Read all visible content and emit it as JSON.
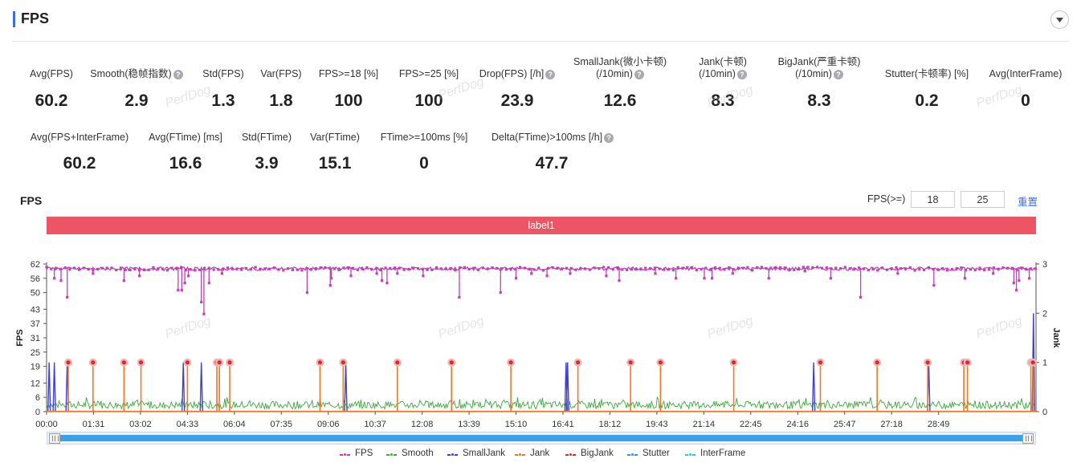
{
  "header": {
    "title": "FPS"
  },
  "metrics_row1": [
    {
      "label": "Avg(FPS)",
      "value": "60.2",
      "help": false
    },
    {
      "label": "Smooth(稳帧指数)",
      "value": "2.9",
      "help": true
    },
    {
      "label": "Std(FPS)",
      "value": "1.3",
      "help": false
    },
    {
      "label": "Var(FPS)",
      "value": "1.8",
      "help": false
    },
    {
      "label": "FPS>=18 [%]",
      "value": "100",
      "help": false
    },
    {
      "label": "FPS>=25 [%]",
      "value": "100",
      "help": false
    },
    {
      "label": "Drop(FPS) [/h]",
      "value": "23.9",
      "help": true
    },
    {
      "label": "SmallJank(微小卡顿)",
      "label2": "(/10min)",
      "value": "12.6",
      "help": true
    },
    {
      "label": "Jank(卡顿)",
      "label2": "(/10min)",
      "value": "8.3",
      "help": true
    },
    {
      "label": "BigJank(严重卡顿)",
      "label2": "(/10min)",
      "value": "8.3",
      "help": true
    },
    {
      "label": "Stutter(卡顿率) [%]",
      "value": "0.2",
      "help": false
    },
    {
      "label": "Avg(InterFrame)",
      "value": "0",
      "help": false
    }
  ],
  "metrics_row2": [
    {
      "label": "Avg(FPS+InterFrame)",
      "value": "60.2",
      "help": false
    },
    {
      "label": "Avg(FTime) [ms]",
      "value": "16.6",
      "help": false
    },
    {
      "label": "Std(FTime)",
      "value": "3.9",
      "help": false
    },
    {
      "label": "Var(FTime)",
      "value": "15.1",
      "help": false
    },
    {
      "label": "FTime>=100ms [%]",
      "value": "0",
      "help": false
    },
    {
      "label": "Delta(FTime)>100ms [/h]",
      "value": "47.7",
      "help": true
    }
  ],
  "chart_controls": {
    "title": "FPS",
    "threshold_label": "FPS(>=)",
    "threshold1": "18",
    "threshold2": "25",
    "reset_label": "重置",
    "label_bar": "label1",
    "watermark": "PerfDog"
  },
  "colors": {
    "accent": "#3b6fd6",
    "fps": "#c040b8",
    "smooth": "#3aa83a",
    "smalljank": "#4040d8",
    "jank": "#f07828",
    "bigjank": "#e02828",
    "stutter": "#3a90ea",
    "interframe": "#30c8d8",
    "label_bar": "#ee5564"
  },
  "chart_data": {
    "type": "line",
    "xlabel": "",
    "ylabel": "FPS",
    "y2label": "Jank",
    "x_unit": "mm:ss",
    "x_range": [
      0,
      1918
    ],
    "ylim": [
      0,
      62
    ],
    "y_ticks": [
      0,
      6,
      12,
      19,
      25,
      31,
      37,
      43,
      50,
      56,
      62
    ],
    "y2lim": [
      0,
      3
    ],
    "y2_ticks": [
      0,
      1,
      2,
      3
    ],
    "x_ticks": [
      "00:00",
      "01:31",
      "03:02",
      "04:33",
      "06:04",
      "07:35",
      "09:06",
      "10:37",
      "12:08",
      "13:39",
      "15:10",
      "16:41",
      "18:12",
      "19:43",
      "21:14",
      "22:45",
      "24:16",
      "25:47",
      "27:18",
      "28:49"
    ],
    "grid": false,
    "legend_position": "bottom",
    "series": [
      {
        "name": "FPS",
        "axis": "left",
        "baseline": 60,
        "dips": [
          [
            15,
            56
          ],
          [
            28,
            55
          ],
          [
            40,
            48
          ],
          [
            90,
            58
          ],
          [
            150,
            55
          ],
          [
            180,
            57
          ],
          [
            255,
            51
          ],
          [
            262,
            51
          ],
          [
            268,
            54
          ],
          [
            275,
            57
          ],
          [
            300,
            46
          ],
          [
            305,
            41
          ],
          [
            315,
            54
          ],
          [
            340,
            58
          ],
          [
            505,
            50
          ],
          [
            550,
            53
          ],
          [
            552,
            56
          ],
          [
            590,
            57
          ],
          [
            640,
            58
          ],
          [
            650,
            55
          ],
          [
            660,
            54
          ],
          [
            680,
            58
          ],
          [
            730,
            57
          ],
          [
            800,
            48
          ],
          [
            880,
            50
          ],
          [
            910,
            56
          ],
          [
            940,
            58
          ],
          [
            970,
            57
          ],
          [
            1015,
            58
          ],
          [
            1085,
            57
          ],
          [
            1110,
            55
          ],
          [
            1180,
            58
          ],
          [
            1220,
            56
          ],
          [
            1275,
            56
          ],
          [
            1290,
            56
          ],
          [
            1330,
            58
          ],
          [
            1400,
            56
          ],
          [
            1470,
            59
          ],
          [
            1520,
            56
          ],
          [
            1578,
            48
          ],
          [
            1650,
            58
          ],
          [
            1720,
            53
          ],
          [
            1780,
            56
          ],
          [
            1835,
            58
          ],
          [
            1875,
            54
          ],
          [
            1880,
            51
          ],
          [
            1885,
            55
          ],
          [
            1905,
            56
          ]
        ]
      },
      {
        "name": "Smooth",
        "axis": "left",
        "approx_range": [
          0,
          6
        ]
      },
      {
        "name": "SmallJank",
        "axis": "right",
        "events": [
          [
            5,
            1
          ],
          [
            15,
            1
          ],
          [
            40,
            1
          ],
          [
            265,
            1
          ],
          [
            300,
            1
          ],
          [
            580,
            1
          ],
          [
            1007,
            1
          ],
          [
            1010,
            1
          ],
          [
            1487,
            1
          ],
          [
            1710,
            1
          ],
          [
            1913,
            2
          ]
        ]
      },
      {
        "name": "Jank",
        "axis": "right",
        "events": [
          [
            42,
            1
          ],
          [
            90,
            1
          ],
          [
            150,
            1
          ],
          [
            183,
            1
          ],
          [
            273,
            1
          ],
          [
            330,
            1
          ],
          [
            335,
            1
          ],
          [
            355,
            1
          ],
          [
            530,
            1
          ],
          [
            575,
            1
          ],
          [
            680,
            1
          ],
          [
            785,
            1
          ],
          [
            900,
            1
          ],
          [
            1030,
            1
          ],
          [
            1132,
            1
          ],
          [
            1190,
            1
          ],
          [
            1332,
            1
          ],
          [
            1500,
            1
          ],
          [
            1610,
            1
          ],
          [
            1708,
            1
          ],
          [
            1778,
            1
          ],
          [
            1785,
            1
          ],
          [
            1908,
            1
          ],
          [
            1912,
            1
          ]
        ]
      },
      {
        "name": "BigJank",
        "axis": "right",
        "events": [
          [
            42,
            1
          ],
          [
            90,
            1
          ],
          [
            150,
            1
          ],
          [
            183,
            1
          ],
          [
            273,
            1
          ],
          [
            330,
            1
          ],
          [
            335,
            1
          ],
          [
            355,
            1
          ],
          [
            530,
            1
          ],
          [
            575,
            1
          ],
          [
            680,
            1
          ],
          [
            785,
            1
          ],
          [
            900,
            1
          ],
          [
            1030,
            1
          ],
          [
            1132,
            1
          ],
          [
            1190,
            1
          ],
          [
            1332,
            1
          ],
          [
            1500,
            1
          ],
          [
            1610,
            1
          ],
          [
            1708,
            1
          ],
          [
            1778,
            1
          ],
          [
            1785,
            1
          ],
          [
            1908,
            1
          ],
          [
            1912,
            1
          ]
        ]
      },
      {
        "name": "Stutter",
        "axis": "right",
        "events": []
      },
      {
        "name": "InterFrame",
        "axis": "left",
        "events": []
      }
    ]
  }
}
